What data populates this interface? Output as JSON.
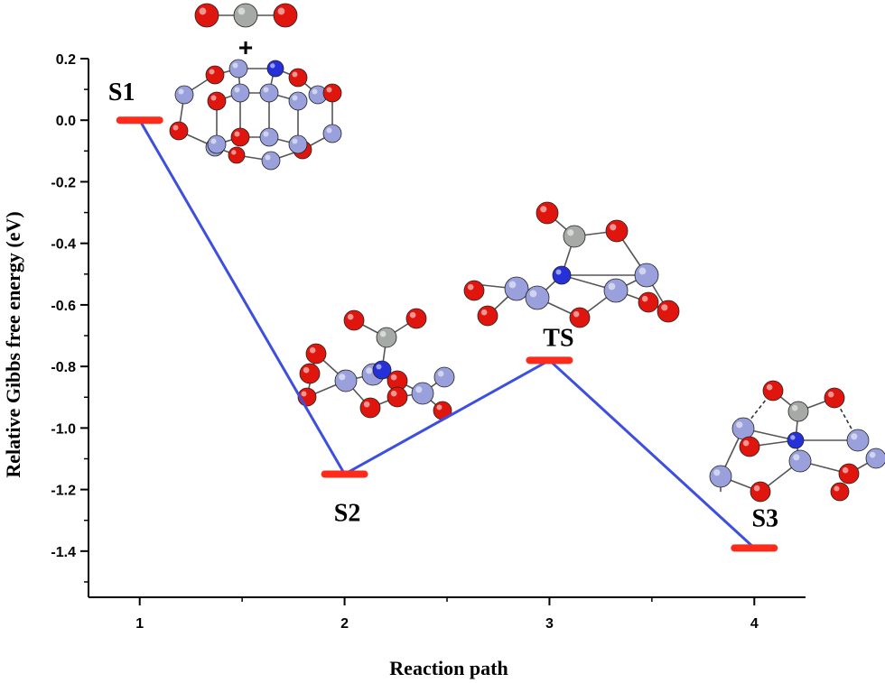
{
  "chart_data": {
    "type": "line",
    "xlabel": "Reaction path",
    "ylabel": "Relative Gibbs free energy (eV)",
    "x": [
      1,
      2,
      3,
      4
    ],
    "x_tick_labels": [
      "1",
      "2",
      "3",
      "4"
    ],
    "xlim": [
      0.75,
      4.25
    ],
    "ylim": [
      -1.55,
      0.2
    ],
    "y_ticks": [
      0.2,
      0.0,
      -0.2,
      -0.4,
      -0.6,
      -0.8,
      -1.0,
      -1.2,
      -1.4
    ],
    "y_tick_labels": [
      "0.2",
      "0.0",
      "-0.2",
      "-0.4",
      "-0.6",
      "-0.8",
      "-1.0",
      "-1.2",
      "-1.4"
    ],
    "series": [
      {
        "values": [
          0.0,
          -1.15,
          -0.78,
          -1.39
        ],
        "color": "#3c4fe0"
      }
    ],
    "states": [
      {
        "label": "S1",
        "x": 1,
        "energy": 0.0
      },
      {
        "label": "S2",
        "x": 2,
        "energy": -1.15
      },
      {
        "label": "TS",
        "x": 3,
        "energy": -0.78
      },
      {
        "label": "S3",
        "x": 4,
        "energy": -1.39
      }
    ],
    "level_color": "#ff2a1a",
    "plus_text": "+",
    "grid": false,
    "legend": "none",
    "molecule_insets": [
      "CO2 + cluster",
      "S2 structure",
      "TS structure",
      "S3 structure"
    ],
    "atom_colors": {
      "oxygen": "#e0160e",
      "carbon": "#a6aaa6",
      "metal": "#9aa0dc",
      "nitrogen": "#2530d8"
    }
  }
}
